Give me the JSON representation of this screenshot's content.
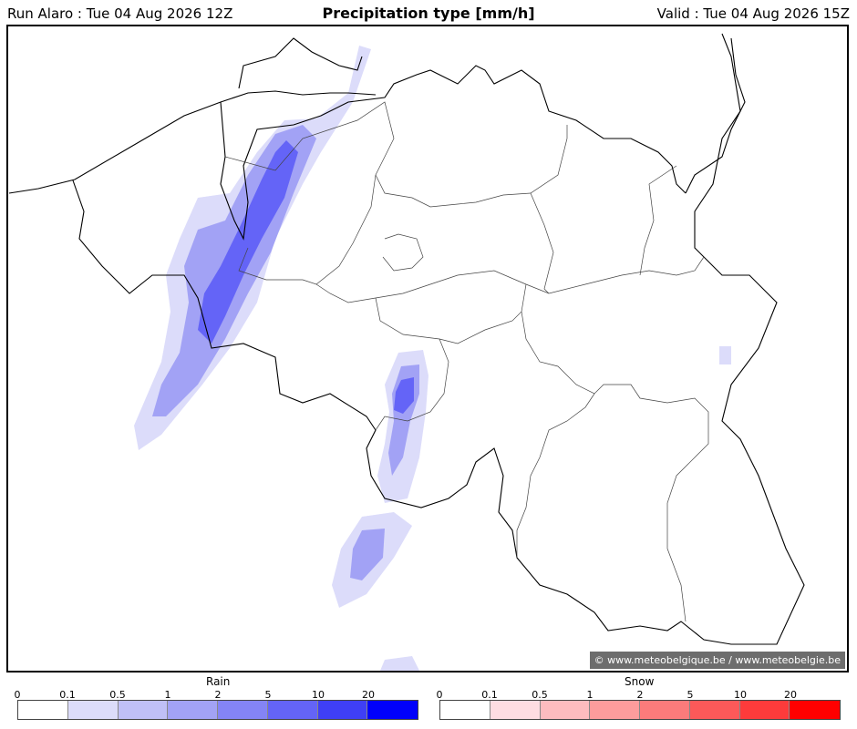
{
  "header": {
    "run": "Run Alaro : Tue 04 Aug 2026 12Z",
    "title": "Precipitation type [mm/h]",
    "valid": "Valid : Tue 04 Aug 2026 15Z"
  },
  "map": {
    "credit": "© www.meteobelgique.be / www.meteobelgie.be",
    "region": "Belgium"
  },
  "legend": {
    "rain": {
      "title": "Rain",
      "ticks": [
        "0",
        "0.1",
        "0.5",
        "1",
        "2",
        "5",
        "10",
        "20"
      ],
      "colors": [
        "#ffffff",
        "#dcdcfa",
        "#c0c0f7",
        "#a2a2f5",
        "#8484f5",
        "#6464f7",
        "#3f3ff5",
        "#0000fb"
      ]
    },
    "snow": {
      "title": "Snow",
      "ticks": [
        "0",
        "0.1",
        "0.5",
        "1",
        "2",
        "5",
        "10",
        "20"
      ],
      "colors": [
        "#ffffff",
        "#fedde2",
        "#fdbcbf",
        "#fd9c9c",
        "#fc7b7b",
        "#fc5959",
        "#fd3b3b",
        "#ff0000"
      ]
    }
  }
}
